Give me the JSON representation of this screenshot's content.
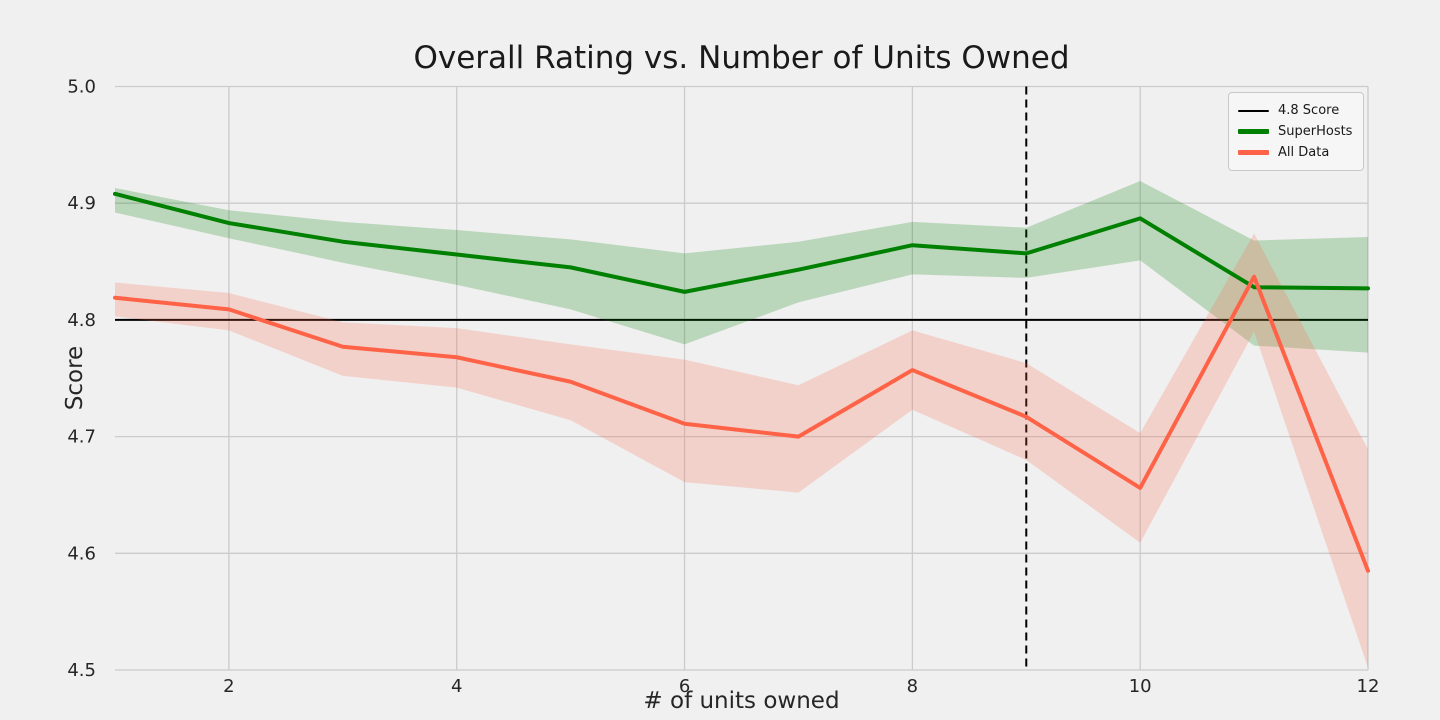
{
  "chart_data": {
    "type": "line",
    "title": "Overall Rating vs. Number of Units Owned",
    "xlabel": "# of units owned",
    "ylabel": "Score",
    "xlim": [
      1,
      12
    ],
    "ylim": [
      4.5,
      5.0
    ],
    "grid": true,
    "legend_position": "upper right",
    "background_color": "#f0f0f0",
    "grid_color": "#cbcbcb",
    "xticks": [
      {
        "v": 2,
        "label": "2"
      },
      {
        "v": 4,
        "label": "4"
      },
      {
        "v": 6,
        "label": "6"
      },
      {
        "v": 8,
        "label": "8"
      },
      {
        "v": 10,
        "label": "10"
      },
      {
        "v": 12,
        "label": "12"
      }
    ],
    "yticks": [
      {
        "v": 4.5,
        "label": "4.5"
      },
      {
        "v": 4.6,
        "label": "4.6"
      },
      {
        "v": 4.7,
        "label": "4.7"
      },
      {
        "v": 4.8,
        "label": "4.8"
      },
      {
        "v": 4.9,
        "label": "4.9"
      },
      {
        "v": 5.0,
        "label": "5.0"
      }
    ],
    "x": [
      1,
      2,
      3,
      4,
      5,
      6,
      7,
      8,
      9,
      10,
      11,
      12
    ],
    "series": [
      {
        "name": "SuperHosts",
        "color": "#008000",
        "line_width": 4,
        "values": [
          4.908,
          4.883,
          4.867,
          4.856,
          4.845,
          4.824,
          4.843,
          4.864,
          4.857,
          4.887,
          4.828,
          4.827
        ],
        "band_lower": [
          4.892,
          4.87,
          4.849,
          4.83,
          4.809,
          4.779,
          4.815,
          4.839,
          4.836,
          4.851,
          4.778,
          4.772
        ],
        "band_upper": [
          4.913,
          4.894,
          4.884,
          4.877,
          4.869,
          4.857,
          4.867,
          4.884,
          4.879,
          4.919,
          4.868,
          4.871
        ]
      },
      {
        "name": "All Data",
        "color": "#ff6347",
        "line_width": 4,
        "values": [
          4.819,
          4.809,
          4.777,
          4.768,
          4.747,
          4.711,
          4.7,
          4.757,
          4.717,
          4.656,
          4.837,
          4.585
        ],
        "band_lower": [
          4.803,
          4.791,
          4.752,
          4.742,
          4.714,
          4.661,
          4.652,
          4.723,
          4.68,
          4.609,
          4.79,
          4.502
        ],
        "band_upper": [
          4.832,
          4.823,
          4.798,
          4.793,
          4.779,
          4.766,
          4.744,
          4.791,
          4.763,
          4.703,
          4.874,
          4.689
        ]
      }
    ],
    "reference_lines": [
      {
        "label": "4.8 Score",
        "orientation": "horizontal",
        "value": 4.8,
        "color": "#000000",
        "style": "solid"
      },
      {
        "label": "",
        "orientation": "vertical",
        "value": 9,
        "color": "#000000",
        "style": "dashed"
      }
    ],
    "legend": [
      {
        "label": "4.8 Score",
        "color": "#000000",
        "thickness": 2
      },
      {
        "label": "SuperHosts",
        "color": "#008000",
        "thickness": 5
      },
      {
        "label": "All Data",
        "color": "#ff6347",
        "thickness": 5
      }
    ]
  }
}
